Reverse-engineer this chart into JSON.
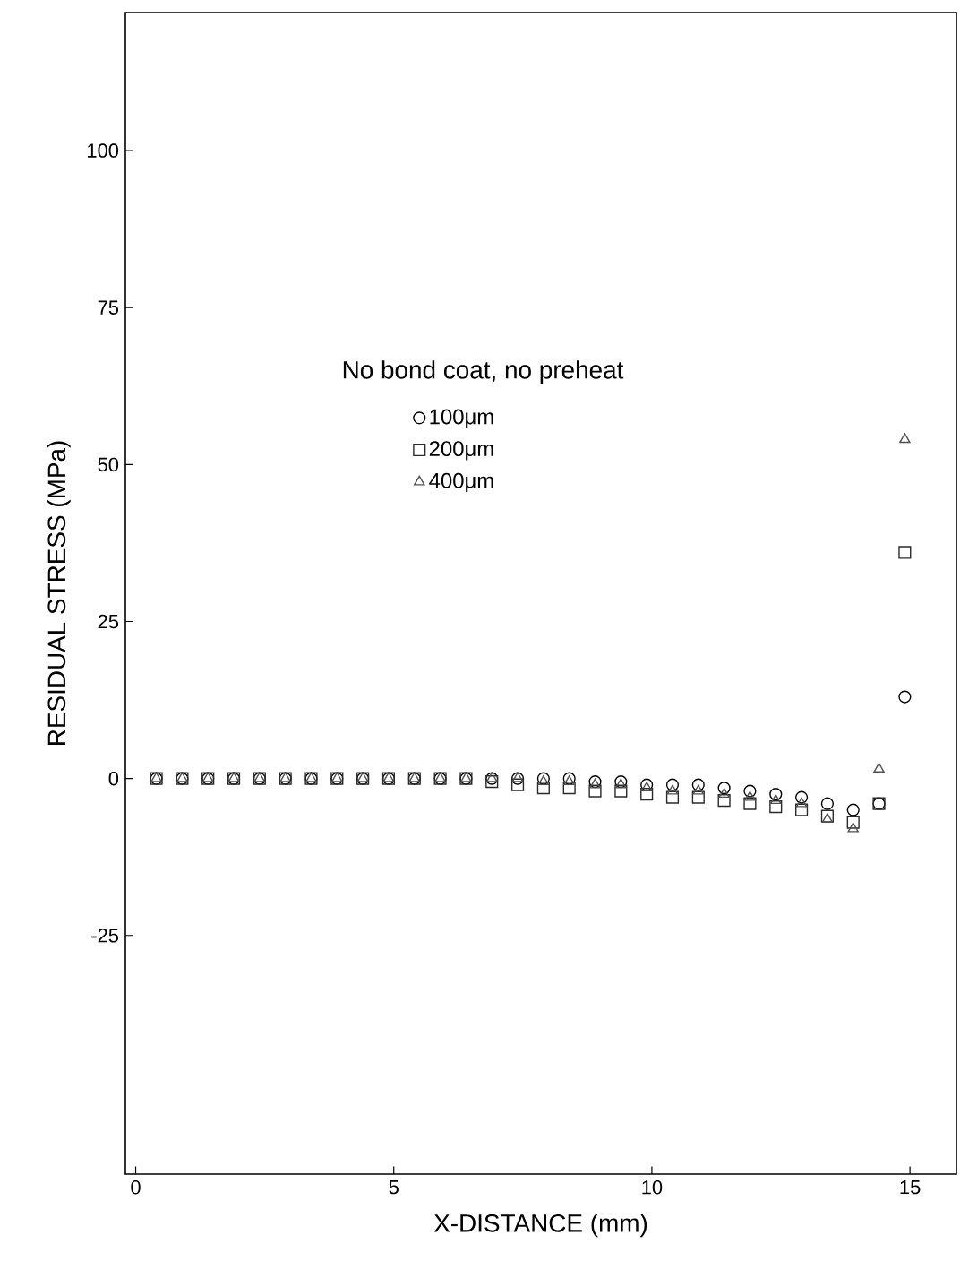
{
  "chart_data": {
    "type": "scatter",
    "xlabel": "X-DISTANCE (mm)",
    "ylabel": "RESIDUAL STRESS (MPa)",
    "legend_title": "No bond coat, no preheat",
    "x": [
      0.4,
      0.9,
      1.4,
      1.9,
      2.4,
      2.9,
      3.4,
      3.9,
      4.4,
      4.9,
      5.4,
      5.9,
      6.4,
      6.9,
      7.4,
      7.9,
      8.4,
      8.9,
      9.4,
      9.9,
      10.4,
      10.9,
      11.4,
      11.9,
      12.4,
      12.9,
      13.4,
      13.9,
      14.4,
      14.9
    ],
    "series": [
      {
        "name": "100μm",
        "color": "#000000",
        "marker": "circle",
        "values": [
          0,
          0,
          0,
          0,
          0,
          0,
          0,
          0,
          0,
          0,
          0,
          0,
          0,
          0,
          0,
          0,
          0,
          -0.5,
          -0.5,
          -1,
          -1,
          -1,
          -1.5,
          -2,
          -2.5,
          -3,
          -4,
          -5,
          -4,
          13
        ]
      },
      {
        "name": "200μm",
        "color": "#2a2a2a",
        "marker": "square",
        "values": [
          0,
          0,
          0,
          0,
          0,
          0,
          0,
          0,
          0,
          0,
          0,
          0,
          0,
          -0.5,
          -1,
          -1.5,
          -1.5,
          -2,
          -2,
          -2.5,
          -3,
          -3,
          -3.5,
          -4,
          -4.5,
          -5,
          -6,
          -7,
          -4,
          36
        ]
      },
      {
        "name": "400μm",
        "color": "#505050",
        "marker": "triangle",
        "values": [
          0,
          0,
          0,
          0,
          0,
          0,
          0,
          0,
          0,
          0,
          0,
          0,
          0,
          0,
          0,
          -0.5,
          -0.5,
          -1,
          -1,
          -1.5,
          -2,
          -2,
          -2.5,
          -3,
          -3.5,
          -4,
          -6.5,
          -8,
          1.5,
          54
        ]
      }
    ],
    "xlim": [
      -0.2,
      15.9
    ],
    "ylim": [
      -63,
      122
    ],
    "xticks": [
      0,
      5,
      10,
      15
    ],
    "yticks": [
      -25,
      0,
      25,
      50,
      75,
      100
    ],
    "legend": "top",
    "grid": false
  }
}
